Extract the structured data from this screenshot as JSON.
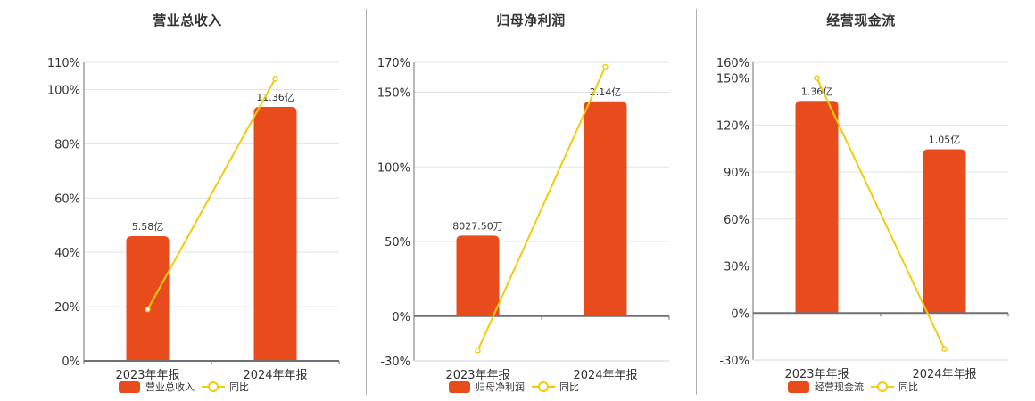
{
  "colors": {
    "bar": "#e84b1c",
    "line": "#f2cc0c",
    "grid": "#dde3ee",
    "axis": "#6e7079",
    "text": "#333333"
  },
  "legend_line_label": "同比",
  "chart_data": [
    {
      "type": "bar",
      "title": "营业总收入",
      "categories": [
        "2023年年报",
        "2024年年报"
      ],
      "series": [
        {
          "name": "营业总收入",
          "type": "bar",
          "values": [
            5.58,
            11.36
          ],
          "unit": "亿",
          "labels": [
            "5.58亿",
            "11.36亿"
          ]
        },
        {
          "name": "同比",
          "type": "line",
          "values": [
            19,
            104
          ],
          "unit": "%"
        }
      ],
      "yaxis": {
        "ticks": [
          "0%",
          "20%",
          "40%",
          "60%",
          "80%",
          "100%",
          "110%"
        ],
        "tick_values": [
          0,
          20,
          40,
          60,
          80,
          100,
          110
        ],
        "ylim": [
          0,
          110
        ]
      },
      "grid": true,
      "legend_position": "bottom"
    },
    {
      "type": "bar",
      "title": "归母净利润",
      "categories": [
        "2023年年报",
        "2024年年报"
      ],
      "series": [
        {
          "name": "归母净利润",
          "type": "bar",
          "values": [
            0.80275,
            2.14
          ],
          "unit": "亿",
          "labels": [
            "8027.50万",
            "2.14亿"
          ]
        },
        {
          "name": "同比",
          "type": "line",
          "values": [
            -23,
            167
          ],
          "unit": "%"
        }
      ],
      "yaxis": {
        "ticks": [
          "-30%",
          "0%",
          "50%",
          "100%",
          "150%",
          "170%"
        ],
        "tick_values": [
          -30,
          0,
          50,
          100,
          150,
          170
        ],
        "ylim": [
          -30,
          170
        ]
      },
      "grid": true,
      "legend_position": "bottom"
    },
    {
      "type": "bar",
      "title": "经营现金流",
      "categories": [
        "2023年年报",
        "2024年年报"
      ],
      "series": [
        {
          "name": "经营现金流",
          "type": "bar",
          "values": [
            1.36,
            1.05
          ],
          "unit": "亿",
          "labels": [
            "1.36亿",
            "1.05亿"
          ]
        },
        {
          "name": "同比",
          "type": "line",
          "values": [
            150,
            -23
          ],
          "unit": "%"
        }
      ],
      "yaxis": {
        "ticks": [
          "-30%",
          "0%",
          "30%",
          "60%",
          "90%",
          "120%",
          "150%",
          "160%"
        ],
        "tick_values": [
          -30,
          0,
          30,
          60,
          90,
          120,
          150,
          160
        ],
        "ylim": [
          -30,
          160
        ]
      },
      "grid": true,
      "legend_position": "bottom"
    }
  ]
}
